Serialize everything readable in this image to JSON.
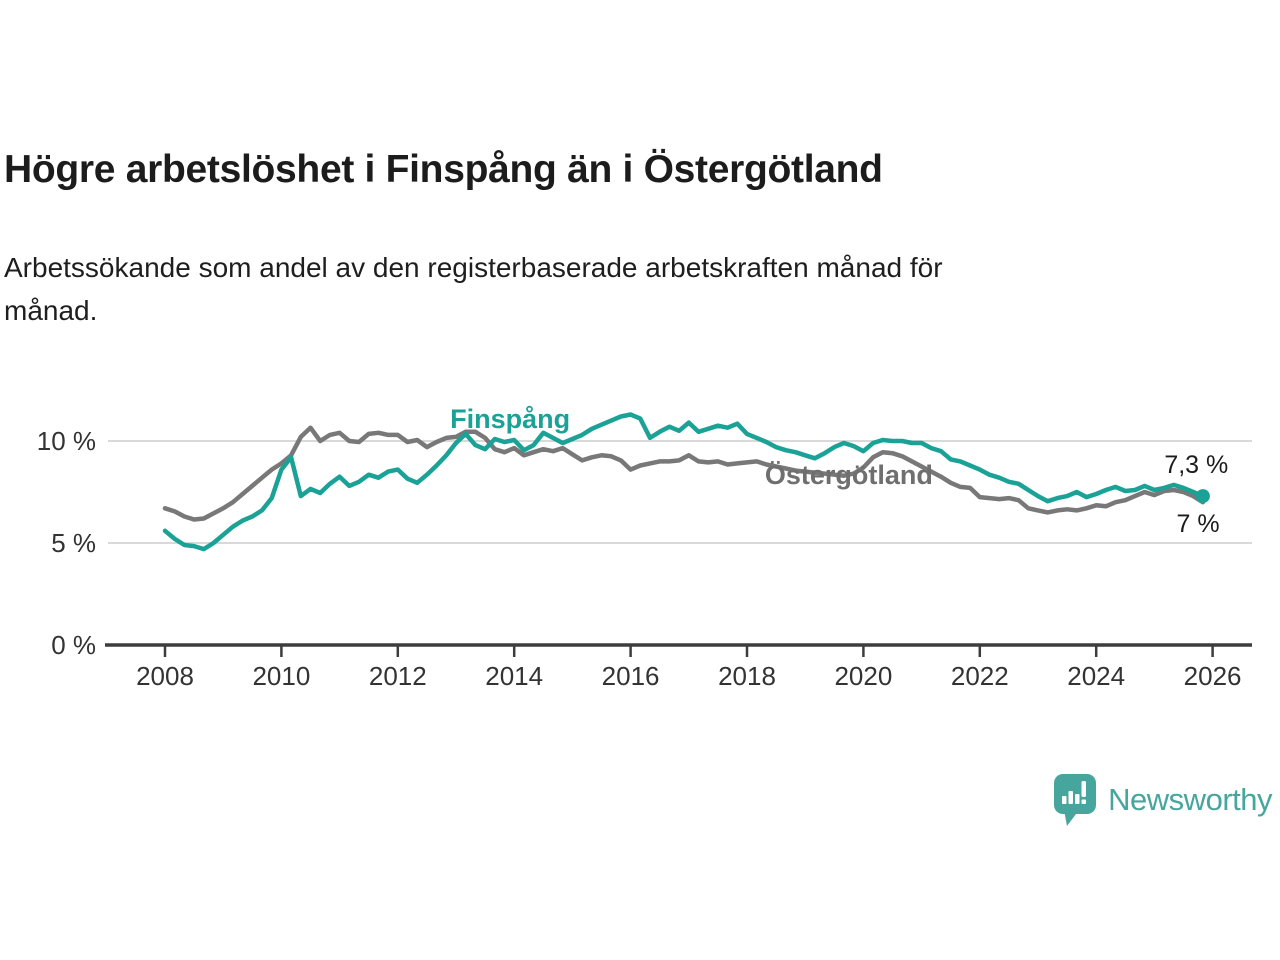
{
  "header": {
    "title": "Högre arbetslöshet i Finspång än i Östergötland",
    "subtitle": "Arbetssökande som andel av den registerbaserade arbetskraften månad för månad."
  },
  "branding": {
    "name": "Newsworthy",
    "logo_icon": "speech-bubble-bar-chart",
    "logo_color": "#46a69d"
  },
  "colors": {
    "finspang_line": "#1ba297",
    "ostergotland_line": "#787878",
    "gridline": "#d9d9d9",
    "axis": "#3d3d3d",
    "axis_text": "#333333",
    "annotation_text": "#1c1c1c",
    "background": "#ffffff"
  },
  "chart_data": {
    "type": "line",
    "title": "Högre arbetslöshet i Finspång än i Östergötland",
    "subtitle": "Arbetssökande som andel av den registerbaserade arbetskraften månad för månad.",
    "unit": "%",
    "grid": "horizontal-only",
    "legend": "inline-labels",
    "x_axis": {
      "ticks": [
        2008,
        2010,
        2012,
        2014,
        2016,
        2018,
        2020,
        2022,
        2024,
        2026
      ],
      "tick_labels": [
        "2008",
        "2010",
        "2012",
        "2014",
        "2016",
        "2018",
        "2020",
        "2022",
        "2024",
        "2026"
      ],
      "range": [
        2007.0,
        2026.85
      ]
    },
    "y_axis": {
      "ticks": [
        0,
        5,
        10
      ],
      "tick_labels": [
        "0 %",
        "5 %",
        "10 %"
      ],
      "range": [
        0,
        12.3
      ]
    },
    "x_start_year": 2008.0,
    "x_step_years": 0.1666667,
    "series": [
      {
        "name": "Östergötland",
        "color": "#787878",
        "line_width": 4.5,
        "end_dot": false,
        "end_value_label": "7 %",
        "values": [
          6.7,
          6.55,
          6.3,
          6.15,
          6.2,
          6.45,
          6.7,
          7.0,
          7.4,
          7.8,
          8.2,
          8.6,
          8.9,
          9.3,
          10.2,
          10.65,
          10.0,
          10.3,
          10.4,
          10.0,
          9.95,
          10.35,
          10.4,
          10.3,
          10.3,
          9.95,
          10.05,
          9.7,
          9.95,
          10.15,
          10.2,
          10.45,
          10.45,
          10.15,
          9.6,
          9.45,
          9.65,
          9.3,
          9.45,
          9.6,
          9.5,
          9.65,
          9.35,
          9.05,
          9.2,
          9.3,
          9.25,
          9.05,
          8.6,
          8.8,
          8.9,
          9.0,
          9.0,
          9.05,
          9.3,
          9.0,
          8.95,
          9.0,
          8.85,
          8.9,
          8.95,
          9.0,
          8.85,
          8.75,
          8.65,
          8.55,
          8.5,
          8.45,
          8.4,
          8.35,
          8.3,
          8.4,
          8.7,
          9.2,
          9.45,
          9.4,
          9.25,
          9.0,
          8.75,
          8.5,
          8.25,
          7.95,
          7.75,
          7.7,
          7.25,
          7.2,
          7.15,
          7.2,
          7.1,
          6.7,
          6.6,
          6.5,
          6.6,
          6.65,
          6.6,
          6.7,
          6.85,
          6.8,
          7.0,
          7.1,
          7.3,
          7.5,
          7.35,
          7.55,
          7.6,
          7.5,
          7.3,
          7.0
        ]
      },
      {
        "name": "Finspång",
        "color": "#1ba297",
        "line_width": 4.5,
        "end_dot": true,
        "end_dot_radius": 7,
        "end_value_label": "7,3 %",
        "values": [
          5.6,
          5.2,
          4.9,
          4.85,
          4.7,
          5.0,
          5.4,
          5.8,
          6.1,
          6.3,
          6.6,
          7.2,
          8.6,
          9.2,
          7.3,
          7.65,
          7.45,
          7.9,
          8.25,
          7.8,
          8.0,
          8.35,
          8.2,
          8.5,
          8.6,
          8.15,
          7.95,
          8.35,
          8.8,
          9.3,
          9.9,
          10.35,
          9.8,
          9.6,
          10.1,
          9.95,
          10.05,
          9.55,
          9.8,
          10.4,
          10.15,
          9.9,
          10.1,
          10.3,
          10.6,
          10.8,
          11.0,
          11.2,
          11.3,
          11.1,
          10.15,
          10.45,
          10.7,
          10.5,
          10.9,
          10.45,
          10.6,
          10.75,
          10.65,
          10.85,
          10.35,
          10.15,
          9.95,
          9.7,
          9.55,
          9.45,
          9.3,
          9.15,
          9.4,
          9.7,
          9.9,
          9.75,
          9.5,
          9.9,
          10.05,
          10.0,
          10.0,
          9.9,
          9.9,
          9.65,
          9.5,
          9.1,
          9.0,
          8.8,
          8.6,
          8.35,
          8.2,
          8.0,
          7.9,
          7.6,
          7.3,
          7.05,
          7.2,
          7.3,
          7.5,
          7.25,
          7.4,
          7.6,
          7.75,
          7.55,
          7.6,
          7.8,
          7.6,
          7.7,
          7.85,
          7.7,
          7.5,
          7.3
        ]
      }
    ],
    "annotations": [
      {
        "id": "finspang-series-label",
        "text": "Finspång",
        "year": 2013.93,
        "value": 11.08,
        "color": "#1ba297",
        "size": 27,
        "bold": true
      },
      {
        "id": "ostergotland-series-label",
        "text": "Östergötland",
        "year": 2019.75,
        "value": 8.33,
        "color": "#6f6f6f",
        "size": 27,
        "bold": true
      },
      {
        "id": "finspang-end-value",
        "text": "7,3 %",
        "year": 2025.72,
        "value": 8.87,
        "color": "#1c1c1c",
        "size": 25,
        "bold": false
      },
      {
        "id": "ostergotland-end-value",
        "text": "7 %",
        "year": 2025.75,
        "value": 5.98,
        "color": "#1c1c1c",
        "size": 25,
        "bold": false
      }
    ]
  }
}
